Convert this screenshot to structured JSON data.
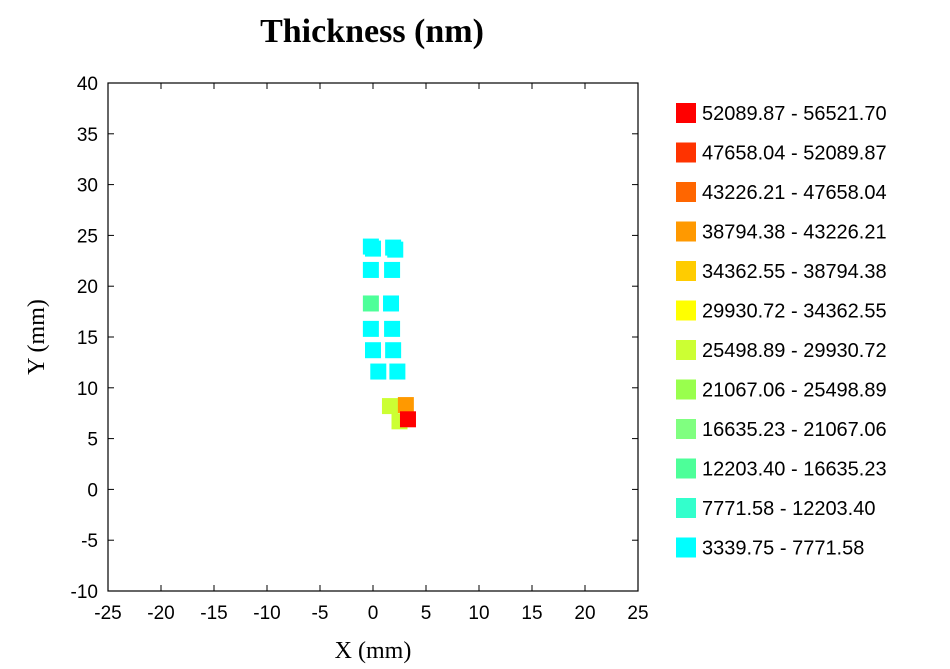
{
  "chart_data": {
    "type": "scatter",
    "title": "Thickness (nm)",
    "xlabel": "X (mm)",
    "ylabel": "Y (mm)",
    "xlim": [
      -25,
      25
    ],
    "ylim": [
      -10,
      40
    ],
    "xticks": [
      -25,
      -20,
      -15,
      -10,
      -5,
      0,
      5,
      10,
      15,
      20,
      25
    ],
    "yticks": [
      -10,
      -5,
      0,
      5,
      10,
      15,
      20,
      25,
      30,
      35,
      40
    ],
    "grid": false,
    "legend_position": "right",
    "legend": [
      {
        "label": "52089.87 - 56521.70",
        "color": "#ff0000"
      },
      {
        "label": "47658.04 - 52089.87",
        "color": "#ff3300"
      },
      {
        "label": "43226.21 - 47658.04",
        "color": "#ff6600"
      },
      {
        "label": "38794.38 - 43226.21",
        "color": "#ff9900"
      },
      {
        "label": "34362.55 - 38794.38",
        "color": "#ffcc00"
      },
      {
        "label": "29930.72 - 34362.55",
        "color": "#ffff00"
      },
      {
        "label": "25498.89 - 29930.72",
        "color": "#ccff33"
      },
      {
        "label": "21067.06 - 25498.89",
        "color": "#99ff4d"
      },
      {
        "label": "16635.23 - 21067.06",
        "color": "#80ff80"
      },
      {
        "label": "12203.40 - 16635.23",
        "color": "#4dff99"
      },
      {
        "label": "7771.58 - 12203.40",
        "color": "#33ffcc"
      },
      {
        "label": "3339.75 - 7771.58",
        "color": "#00ffff"
      }
    ],
    "points": [
      {
        "x": -0.2,
        "y": 23.9,
        "color": "#00ffff"
      },
      {
        "x": 0.0,
        "y": 23.7,
        "color": "#00ffff"
      },
      {
        "x": 1.9,
        "y": 23.8,
        "color": "#00ffff"
      },
      {
        "x": 2.1,
        "y": 23.6,
        "color": "#00ffff"
      },
      {
        "x": -0.2,
        "y": 21.6,
        "color": "#00ffff"
      },
      {
        "x": 1.8,
        "y": 21.6,
        "color": "#00ffff"
      },
      {
        "x": -0.2,
        "y": 18.3,
        "color": "#4dff99"
      },
      {
        "x": 1.7,
        "y": 18.3,
        "color": "#00ffff"
      },
      {
        "x": -0.2,
        "y": 15.8,
        "color": "#00ffff"
      },
      {
        "x": 1.8,
        "y": 15.8,
        "color": "#00ffff"
      },
      {
        "x": 0.0,
        "y": 13.7,
        "color": "#00ffff"
      },
      {
        "x": 1.9,
        "y": 13.7,
        "color": "#00ffff"
      },
      {
        "x": 0.5,
        "y": 11.6,
        "color": "#00ffff"
      },
      {
        "x": 2.3,
        "y": 11.6,
        "color": "#00ffff"
      },
      {
        "x": 1.6,
        "y": 8.2,
        "color": "#ccff33"
      },
      {
        "x": 3.1,
        "y": 8.3,
        "color": "#ff9900"
      },
      {
        "x": 2.5,
        "y": 6.7,
        "color": "#ccff33"
      },
      {
        "x": 3.3,
        "y": 6.9,
        "color": "#ff0000"
      }
    ]
  }
}
